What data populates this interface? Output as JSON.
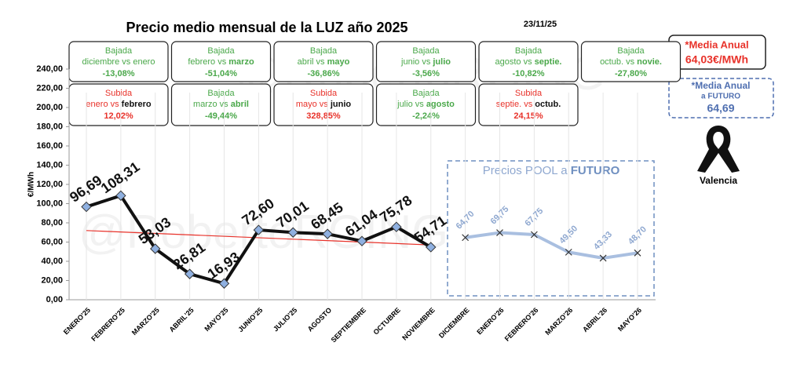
{
  "title": "Precio medio mensual de la LUZ año 2025",
  "date": "23/11/25",
  "watermark": "@RobertoRGING",
  "colors": {
    "Bajada": "#4aa84a",
    "Subida": "#e8322a"
  },
  "boxes": [
    {
      "kind": "Bajada",
      "text": [
        "diciembre vs enero"
      ],
      "pct": "-13,08%"
    },
    {
      "kind": "Bajada",
      "text": [
        "febrero vs ",
        "marzo"
      ],
      "pct": "-51,04%"
    },
    {
      "kind": "Bajada",
      "text": [
        "abril vs ",
        "mayo"
      ],
      "pct": "-36,86%"
    },
    {
      "kind": "Bajada",
      "text": [
        "junio vs ",
        "julio"
      ],
      "pct": "-3,56%"
    },
    {
      "kind": "Bajada",
      "text": [
        "agosto vs ",
        "septie."
      ],
      "pct": "-10,82%"
    },
    {
      "kind": "Bajada",
      "text": [
        "octub. vs ",
        "novie."
      ],
      "pct": "-27,80%"
    },
    {
      "kind": "Subida",
      "text": [
        "enero vs ",
        "febrero"
      ],
      "pct": "12,02%"
    },
    {
      "kind": "Bajada",
      "text": [
        "marzo vs ",
        "abril"
      ],
      "pct": "-49,44%"
    },
    {
      "kind": "Subida",
      "text": [
        "mayo vs ",
        "junio"
      ],
      "pct": "328,85%"
    },
    {
      "kind": "Bajada",
      "text": [
        "julio vs ",
        "agosto"
      ],
      "pct": "-2,24%"
    },
    {
      "kind": "Subida",
      "text": [
        "septie. vs ",
        "octub."
      ],
      "pct": "24,15%"
    }
  ],
  "media": {
    "label": "*Media Anual",
    "value": "64,03€/MWh"
  },
  "media_futuro": {
    "label": "*Media Anual",
    "sub": "a FUTURO",
    "value": "64,69"
  },
  "location": "Valencia",
  "chart_data": {
    "type": "line",
    "y_label": "€/MWh",
    "annotation": [
      "Precios POOL a ",
      "FUTURO"
    ],
    "categories": [
      "ENERO'25",
      "FEBRERO'25",
      "MARZO'25",
      "ABRIL'25",
      "MAYO'25",
      "JUNIO'25",
      "JULIO'25",
      "AGOSTO",
      "SEPTIEMBRE",
      "OCTUBRE",
      "NOVIEMBRE",
      "DICIEMBRE",
      "ENERO'26",
      "FEBRERO'26",
      "MARZO'26",
      "ABRIL'26",
      "MAYO'26"
    ],
    "series": [
      {
        "color": "#111111",
        "marker_color": "#8fb0e0",
        "values": [
          96.69,
          108.31,
          53.03,
          26.81,
          16.93,
          72.6,
          70.01,
          68.45,
          61.04,
          75.78,
          54.71,
          null,
          null,
          null,
          null,
          null,
          null
        ],
        "value_labels": [
          "96,69",
          "108,31",
          "53,03",
          "26,81",
          "16,93",
          "72,60",
          "70,01",
          "68,45",
          "61,04",
          "75,78",
          "54,71",
          null,
          null,
          null,
          null,
          null,
          null
        ]
      },
      {
        "color": "#a9bfe0",
        "values": [
          null,
          null,
          null,
          null,
          null,
          null,
          null,
          null,
          null,
          null,
          null,
          64.7,
          69.75,
          67.75,
          49.5,
          43.33,
          48.7
        ],
        "value_labels": [
          null,
          null,
          null,
          null,
          null,
          null,
          null,
          null,
          null,
          null,
          null,
          "64,70",
          "69,75",
          "67,75",
          "49,50",
          "43,33",
          "48,70"
        ]
      }
    ],
    "trend": {
      "color": "#e8322a",
      "start": 72,
      "end": 57
    },
    "ylim": [
      0,
      240
    ],
    "yticks": [
      {
        "value": 0,
        "label": "0,00"
      },
      {
        "value": 20,
        "label": "20,00"
      },
      {
        "value": 40,
        "label": "40,00"
      },
      {
        "value": 60,
        "label": "60,00"
      },
      {
        "value": 80,
        "label": "80,00"
      },
      {
        "value": 100,
        "label": "100,00"
      },
      {
        "value": 120,
        "label": "120,00"
      },
      {
        "value": 140,
        "label": "140,00"
      },
      {
        "value": 160,
        "label": "160,00"
      },
      {
        "value": 180,
        "label": "180,00"
      },
      {
        "value": 200,
        "label": "200,00"
      },
      {
        "value": 220,
        "label": "220,00"
      },
      {
        "value": 240,
        "label": "240,00"
      }
    ]
  }
}
